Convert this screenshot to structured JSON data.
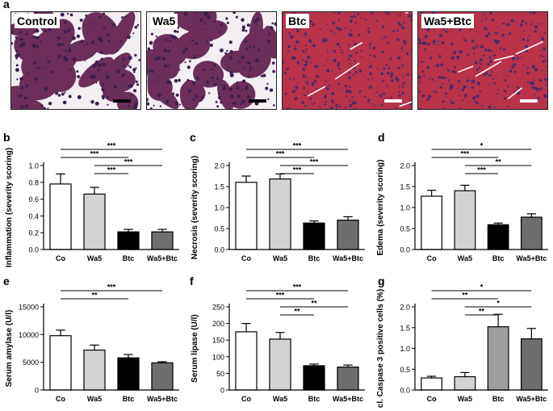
{
  "figure_letters": {
    "a": "a",
    "b": "b",
    "c": "c",
    "d": "d",
    "e": "e",
    "f": "f",
    "g": "g"
  },
  "micrographs": [
    {
      "label": "Control",
      "style": "sparse",
      "scale_bar_color": "#000000"
    },
    {
      "label": "Wa5",
      "style": "sparse",
      "scale_bar_color": "#000000"
    },
    {
      "label": "Btc",
      "style": "dense",
      "scale_bar_color": "#ffffff"
    },
    {
      "label": "Wa5+Btc",
      "style": "dense",
      "scale_bar_color": "#ffffff"
    }
  ],
  "bar_colors": [
    "#ffffff",
    "#d3d3d3",
    "#000000",
    "#6e6e6e"
  ],
  "chart_data": [
    {
      "type": "bar",
      "panel": "b",
      "categories": [
        "Co",
        "Wa5",
        "Btc",
        "Wa5+Btc"
      ],
      "values": [
        0.78,
        0.66,
        0.21,
        0.21
      ],
      "errors": [
        0.12,
        0.08,
        0.03,
        0.03
      ],
      "ylabel": "Inflammation (severity scoring)",
      "ylim": [
        0,
        1.0
      ],
      "yticks": [
        "0.0",
        "0.2",
        "0.4",
        "0.6",
        "0.8",
        "1.0"
      ],
      "ytick_values": [
        0,
        0.2,
        0.4,
        0.6,
        0.8,
        1.0
      ],
      "bar_colors": [
        "#ffffff",
        "#d3d3d3",
        "#000000",
        "#6e6e6e"
      ],
      "significance": [
        {
          "from": 0,
          "to": 3,
          "label": "***"
        },
        {
          "from": 0,
          "to": 2,
          "label": "***"
        },
        {
          "from": 1,
          "to": 3,
          "label": "***"
        },
        {
          "from": 1,
          "to": 2,
          "label": "***"
        }
      ]
    },
    {
      "type": "bar",
      "panel": "c",
      "categories": [
        "Co",
        "Wa5",
        "Btc",
        "Wa5+Btc"
      ],
      "values": [
        1.6,
        1.68,
        0.63,
        0.7
      ],
      "errors": [
        0.15,
        0.12,
        0.05,
        0.08
      ],
      "ylabel": "Necrosis (severity scoring)",
      "ylim": [
        0,
        2.0
      ],
      "yticks": [
        "0.0",
        "0.5",
        "1.0",
        "1.5",
        "2.0"
      ],
      "ytick_values": [
        0,
        0.5,
        1.0,
        1.5,
        2.0
      ],
      "bar_colors": [
        "#ffffff",
        "#d3d3d3",
        "#000000",
        "#6e6e6e"
      ],
      "significance": [
        {
          "from": 0,
          "to": 3,
          "label": "***"
        },
        {
          "from": 0,
          "to": 2,
          "label": "***"
        },
        {
          "from": 1,
          "to": 3,
          "label": "***"
        },
        {
          "from": 1,
          "to": 2,
          "label": "***"
        }
      ]
    },
    {
      "type": "bar",
      "panel": "d",
      "categories": [
        "Co",
        "Wa5",
        "Btc",
        "Wa5+Btc"
      ],
      "values": [
        1.27,
        1.4,
        0.59,
        0.77
      ],
      "errors": [
        0.14,
        0.13,
        0.04,
        0.08
      ],
      "ylabel": "Edema (severity scoring)",
      "ylim": [
        0,
        2.0
      ],
      "yticks": [
        "0.0",
        "0.5",
        "1.0",
        "1.5",
        "2.0"
      ],
      "ytick_values": [
        0,
        0.5,
        1.0,
        1.5,
        2.0
      ],
      "bar_colors": [
        "#ffffff",
        "#d3d3d3",
        "#000000",
        "#6e6e6e"
      ],
      "significance": [
        {
          "from": 0,
          "to": 3,
          "label": "*"
        },
        {
          "from": 0,
          "to": 2,
          "label": "***"
        },
        {
          "from": 1,
          "to": 3,
          "label": "**"
        },
        {
          "from": 1,
          "to": 2,
          "label": "***"
        }
      ]
    },
    {
      "type": "bar",
      "panel": "e",
      "categories": [
        "Co",
        "Wa5",
        "Btc",
        "Wa5+Btc"
      ],
      "values": [
        9800,
        7200,
        5800,
        4900
      ],
      "errors": [
        1000,
        900,
        600,
        200
      ],
      "ylabel": "Serum amylase (U/l)",
      "ylim": [
        0,
        15000
      ],
      "yticks": [
        "0",
        "5000",
        "10000",
        "15000"
      ],
      "ytick_values": [
        0,
        5000,
        10000,
        15000
      ],
      "bar_colors": [
        "#ffffff",
        "#d3d3d3",
        "#000000",
        "#6e6e6e"
      ],
      "significance": [
        {
          "from": 0,
          "to": 3,
          "label": "***"
        },
        {
          "from": 0,
          "to": 2,
          "label": "**"
        }
      ]
    },
    {
      "type": "bar",
      "panel": "f",
      "categories": [
        "Co",
        "Wa5",
        "Btc",
        "Wa5+Btc"
      ],
      "values": [
        175,
        153,
        73,
        69
      ],
      "errors": [
        25,
        20,
        5,
        6
      ],
      "ylabel": "Serum lipase (U/l)",
      "ylim": [
        0,
        250
      ],
      "yticks": [
        "0",
        "50",
        "100",
        "150",
        "200",
        "250"
      ],
      "ytick_values": [
        0,
        50,
        100,
        150,
        200,
        250
      ],
      "bar_colors": [
        "#ffffff",
        "#d3d3d3",
        "#000000",
        "#6e6e6e"
      ],
      "significance": [
        {
          "from": 0,
          "to": 3,
          "label": "***"
        },
        {
          "from": 0,
          "to": 2,
          "label": "***"
        },
        {
          "from": 1,
          "to": 3,
          "label": "**"
        },
        {
          "from": 1,
          "to": 2,
          "label": "**"
        }
      ]
    },
    {
      "type": "bar",
      "panel": "g",
      "categories": [
        "Co",
        "Wa5",
        "Btc",
        "Wa5+Btc"
      ],
      "values": [
        0.29,
        0.32,
        1.52,
        1.23
      ],
      "errors": [
        0.04,
        0.1,
        0.3,
        0.25
      ],
      "ylabel": "cl. Caspase 3 positive cells (%)",
      "ylim": [
        0,
        2.0
      ],
      "yticks": [
        "0.0",
        "0.5",
        "1.0",
        "1.5",
        "2.0"
      ],
      "ytick_values": [
        0,
        0.5,
        1.0,
        1.5,
        2.0
      ],
      "bar_colors": [
        "#ffffff",
        "#d3d3d3",
        "#9e9e9e",
        "#6e6e6e"
      ],
      "significance": [
        {
          "from": 0,
          "to": 3,
          "label": "*"
        },
        {
          "from": 0,
          "to": 2,
          "label": "**"
        },
        {
          "from": 1,
          "to": 3,
          "label": "*"
        },
        {
          "from": 1,
          "to": 2,
          "label": "**"
        }
      ]
    }
  ]
}
